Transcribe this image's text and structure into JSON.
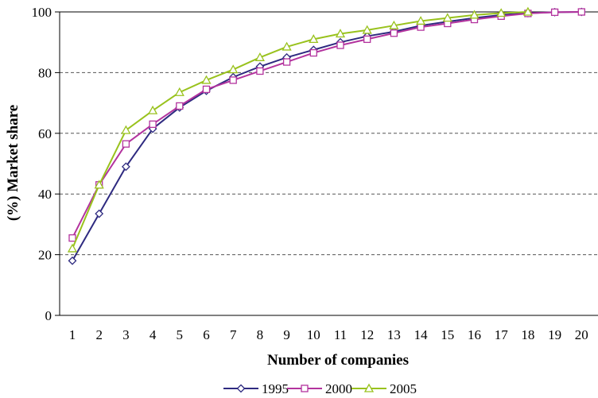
{
  "chart_data": {
    "type": "line",
    "title": "",
    "xlabel": "Number of companies",
    "ylabel": "(%) Market share",
    "x": [
      1,
      2,
      3,
      4,
      5,
      6,
      7,
      8,
      9,
      10,
      11,
      12,
      13,
      14,
      15,
      16,
      17,
      18,
      19,
      20
    ],
    "x_tick_labels": [
      "1",
      "2",
      "3",
      "4",
      "5",
      "6",
      "7",
      "8",
      "9",
      "10",
      "11",
      "12",
      "13",
      "14",
      "15",
      "16",
      "17",
      "18",
      "19",
      "20"
    ],
    "ylim": [
      0,
      100
    ],
    "y_ticks": [
      0,
      20,
      40,
      60,
      80,
      100
    ],
    "y_tick_labels": [
      "0",
      "20",
      "40",
      "60",
      "80",
      "100"
    ],
    "grid": "horizontal dashed",
    "legend_position": "bottom-center",
    "series": [
      {
        "name": "1995",
        "color": "#2e2a80",
        "marker": "diamond",
        "values": [
          18,
          33.5,
          49,
          61.5,
          68.5,
          74,
          78.5,
          82,
          85,
          87.5,
          90,
          92,
          93.5,
          95.5,
          96.8,
          98,
          99,
          99.6,
          99.9,
          100
        ]
      },
      {
        "name": "2000",
        "color": "#b3339e",
        "marker": "square",
        "values": [
          25.5,
          43,
          56.5,
          63,
          69,
          74.5,
          77.5,
          80.5,
          83.5,
          86.5,
          89,
          91,
          93,
          95,
          96.2,
          97.5,
          98.6,
          99.5,
          99.9,
          100
        ]
      },
      {
        "name": "2005",
        "color": "#99c21d",
        "marker": "triangle",
        "values": [
          22,
          43,
          61,
          67.5,
          73.5,
          77.5,
          81,
          85,
          88.5,
          91,
          92.8,
          94,
          95.5,
          97,
          98,
          99,
          99.6,
          100,
          null,
          null
        ]
      }
    ]
  }
}
